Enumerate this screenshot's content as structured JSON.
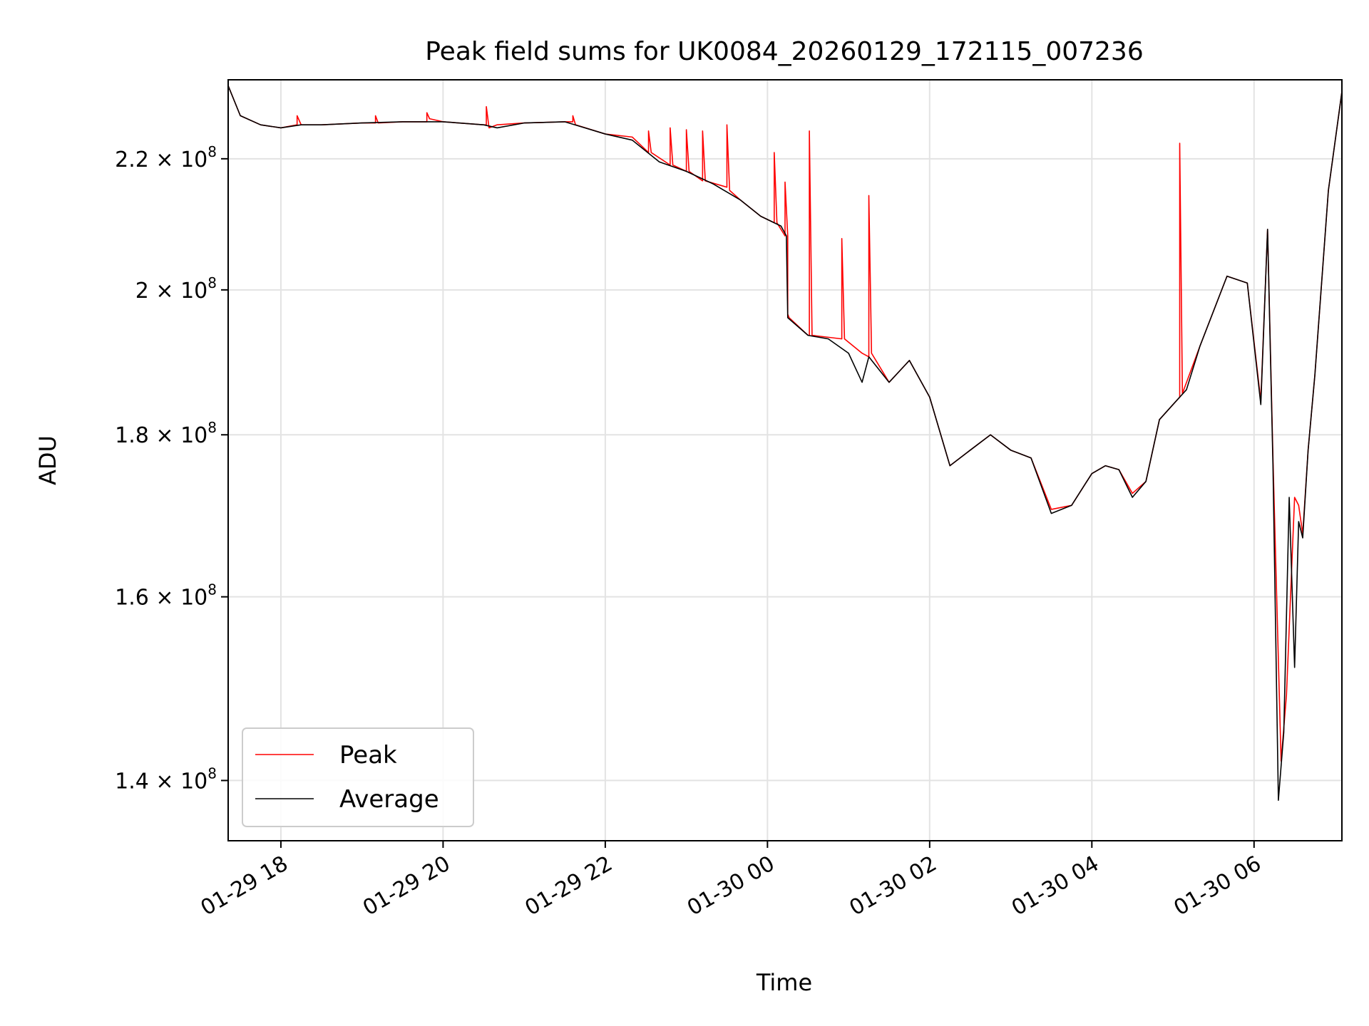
{
  "chart_data": {
    "type": "line",
    "title": "Peak field sums for UK0084_20260129_172115_007236",
    "xlabel": "Time",
    "ylabel": "ADU",
    "y_scale": "log",
    "grid": true,
    "legend_placement": "lower-left",
    "xlim": [
      "2026-01-29 17:21",
      "2026-01-30 07:05"
    ],
    "ylim": [
      134000000,
      233000000
    ],
    "x_ticks": [
      {
        "value": "2026-01-29 18:00",
        "label": "01-29 18"
      },
      {
        "value": "2026-01-29 20:00",
        "label": "01-29 20"
      },
      {
        "value": "2026-01-29 22:00",
        "label": "01-29 22"
      },
      {
        "value": "2026-01-30 00:00",
        "label": "01-30 00"
      },
      {
        "value": "2026-01-30 02:00",
        "label": "01-30 02"
      },
      {
        "value": "2026-01-30 04:00",
        "label": "01-30 04"
      },
      {
        "value": "2026-01-30 06:00",
        "label": "01-30 06"
      }
    ],
    "y_ticks": [
      {
        "value": 140000000,
        "mantissa": "1.4",
        "exponent": "8"
      },
      {
        "value": 160000000,
        "mantissa": "1.6",
        "exponent": "8"
      },
      {
        "value": 180000000,
        "mantissa": "1.8",
        "exponent": "8"
      },
      {
        "value": 200000000,
        "mantissa": "2",
        "exponent": "8"
      },
      {
        "value": 220000000,
        "mantissa": "2.2",
        "exponent": "8"
      }
    ],
    "series": [
      {
        "name": "Peak",
        "color": "#ff0000",
        "x": [
          "2026-01-29 17:21",
          "2026-01-29 17:30",
          "2026-01-29 17:45",
          "2026-01-29 18:00",
          "2026-01-29 18:12",
          "2026-01-29 18:12",
          "2026-01-29 18:15",
          "2026-01-29 18:30",
          "2026-01-29 19:00",
          "2026-01-29 19:10",
          "2026-01-29 19:10",
          "2026-01-29 19:12",
          "2026-01-29 19:30",
          "2026-01-29 19:48",
          "2026-01-29 19:48",
          "2026-01-29 19:50",
          "2026-01-29 20:00",
          "2026-01-29 20:30",
          "2026-01-29 20:32",
          "2026-01-29 20:32",
          "2026-01-29 20:34",
          "2026-01-29 20:40",
          "2026-01-29 21:00",
          "2026-01-29 21:30",
          "2026-01-29 21:36",
          "2026-01-29 21:36",
          "2026-01-29 21:38",
          "2026-01-29 22:00",
          "2026-01-29 22:20",
          "2026-01-29 22:32",
          "2026-01-29 22:32",
          "2026-01-29 22:34",
          "2026-01-29 22:48",
          "2026-01-29 22:48",
          "2026-01-29 22:50",
          "2026-01-29 23:00",
          "2026-01-29 23:00",
          "2026-01-29 23:02",
          "2026-01-29 23:12",
          "2026-01-29 23:12",
          "2026-01-29 23:14",
          "2026-01-29 23:30",
          "2026-01-29 23:30",
          "2026-01-29 23:32",
          "2026-01-29 23:40",
          "2026-01-29 23:55",
          "2026-01-30 00:05",
          "2026-01-30 00:05",
          "2026-01-30 00:07",
          "2026-01-30 00:13",
          "2026-01-30 00:13",
          "2026-01-30 00:15",
          "2026-01-30 00:15",
          "2026-01-30 00:16",
          "2026-01-30 00:30",
          "2026-01-30 00:31",
          "2026-01-30 00:31",
          "2026-01-30 00:33",
          "2026-01-30 00:55",
          "2026-01-30 00:55",
          "2026-01-30 00:57",
          "2026-01-30 01:10",
          "2026-01-30 01:15",
          "2026-01-30 01:15",
          "2026-01-30 01:17",
          "2026-01-30 01:30",
          "2026-01-30 01:45",
          "2026-01-30 02:00",
          "2026-01-30 02:15",
          "2026-01-30 02:30",
          "2026-01-30 02:45",
          "2026-01-30 03:00",
          "2026-01-30 03:15",
          "2026-01-30 03:30",
          "2026-01-30 03:45",
          "2026-01-30 04:00",
          "2026-01-30 04:10",
          "2026-01-30 04:20",
          "2026-01-30 04:30",
          "2026-01-30 04:40",
          "2026-01-30 04:50",
          "2026-01-30 05:05",
          "2026-01-30 05:05",
          "2026-01-30 05:07",
          "2026-01-30 05:20",
          "2026-01-30 05:40",
          "2026-01-30 05:55",
          "2026-01-30 06:05",
          "2026-01-30 06:10",
          "2026-01-30 06:14",
          "2026-01-30 06:20",
          "2026-01-30 06:24",
          "2026-01-30 06:30",
          "2026-01-30 06:33",
          "2026-01-30 06:36",
          "2026-01-30 06:40",
          "2026-01-30 06:45",
          "2026-01-30 06:55",
          "2026-01-30 07:05"
        ],
        "values": [
          232000000,
          227000000,
          225500000,
          225000000,
          225500000,
          227000000,
          225500000,
          225500000,
          225800000,
          225800000,
          227000000,
          225800000,
          226000000,
          226000000,
          227500000,
          226500000,
          226000000,
          225500000,
          225500000,
          228500000,
          225000000,
          225500000,
          225800000,
          226000000,
          226000000,
          227000000,
          225500000,
          224000000,
          223500000,
          221000000,
          224500000,
          221000000,
          219000000,
          225000000,
          219000000,
          218000000,
          224700000,
          218000000,
          216500000,
          224500000,
          216500000,
          215500000,
          225500000,
          215000000,
          213500000,
          211000000,
          210000000,
          221000000,
          210000000,
          208000000,
          216300000,
          208000000,
          196500000,
          196000000,
          193500000,
          193500000,
          224500000,
          193500000,
          193000000,
          207600000,
          193000000,
          191000000,
          190500000,
          214200000,
          191000000,
          187000000,
          190000000,
          185000000,
          176000000,
          178000000,
          180000000,
          178000000,
          177000000,
          170500000,
          171000000,
          175000000,
          176000000,
          175500000,
          172500000,
          174000000,
          182000000,
          185000000,
          222500000,
          185500000,
          192000000,
          202000000,
          201000000,
          184500000,
          209000000,
          177000000,
          142000000,
          149000000,
          172000000,
          171000000,
          167500000,
          178000000,
          188000000,
          215000000,
          231000000
        ]
      },
      {
        "name": "Average",
        "color": "#000000",
        "x": [
          "2026-01-29 17:21",
          "2026-01-29 17:30",
          "2026-01-29 17:45",
          "2026-01-29 18:00",
          "2026-01-29 18:15",
          "2026-01-29 18:30",
          "2026-01-29 19:00",
          "2026-01-29 19:30",
          "2026-01-29 20:00",
          "2026-01-29 20:30",
          "2026-01-29 20:40",
          "2026-01-29 21:00",
          "2026-01-29 21:30",
          "2026-01-29 22:00",
          "2026-01-29 22:20",
          "2026-01-29 22:40",
          "2026-01-29 23:00",
          "2026-01-29 23:20",
          "2026-01-29 23:40",
          "2026-01-29 23:55",
          "2026-01-30 00:10",
          "2026-01-30 00:14",
          "2026-01-30 00:15",
          "2026-01-30 00:30",
          "2026-01-30 00:45",
          "2026-01-30 01:00",
          "2026-01-30 01:10",
          "2026-01-30 01:15",
          "2026-01-30 01:30",
          "2026-01-30 01:45",
          "2026-01-30 02:00",
          "2026-01-30 02:15",
          "2026-01-30 02:30",
          "2026-01-30 02:45",
          "2026-01-30 03:00",
          "2026-01-30 03:15",
          "2026-01-30 03:30",
          "2026-01-30 03:45",
          "2026-01-30 04:00",
          "2026-01-30 04:10",
          "2026-01-30 04:20",
          "2026-01-30 04:30",
          "2026-01-30 04:40",
          "2026-01-30 04:50",
          "2026-01-30 05:00",
          "2026-01-30 05:10",
          "2026-01-30 05:20",
          "2026-01-30 05:40",
          "2026-01-30 05:55",
          "2026-01-30 06:05",
          "2026-01-30 06:10",
          "2026-01-30 06:14",
          "2026-01-30 06:18",
          "2026-01-30 06:22",
          "2026-01-30 06:26",
          "2026-01-30 06:30",
          "2026-01-30 06:33",
          "2026-01-30 06:36",
          "2026-01-30 06:40",
          "2026-01-30 06:45",
          "2026-01-30 06:55",
          "2026-01-30 07:05"
        ],
        "values": [
          232000000,
          227000000,
          225500000,
          225000000,
          225500000,
          225500000,
          225800000,
          226000000,
          226000000,
          225500000,
          225000000,
          225800000,
          226000000,
          224000000,
          223000000,
          219500000,
          218000000,
          216000000,
          213500000,
          211000000,
          209500000,
          208000000,
          196000000,
          193500000,
          193000000,
          191000000,
          187000000,
          190500000,
          187000000,
          190000000,
          185000000,
          176000000,
          178000000,
          180000000,
          178000000,
          177000000,
          170000000,
          171000000,
          175000000,
          176000000,
          175500000,
          172000000,
          174000000,
          182000000,
          184000000,
          186000000,
          192000000,
          202000000,
          201000000,
          184000000,
          209000000,
          176000000,
          138000000,
          145000000,
          172000000,
          152000000,
          169000000,
          167000000,
          178000000,
          188000000,
          215000000,
          231000000
        ]
      }
    ]
  }
}
